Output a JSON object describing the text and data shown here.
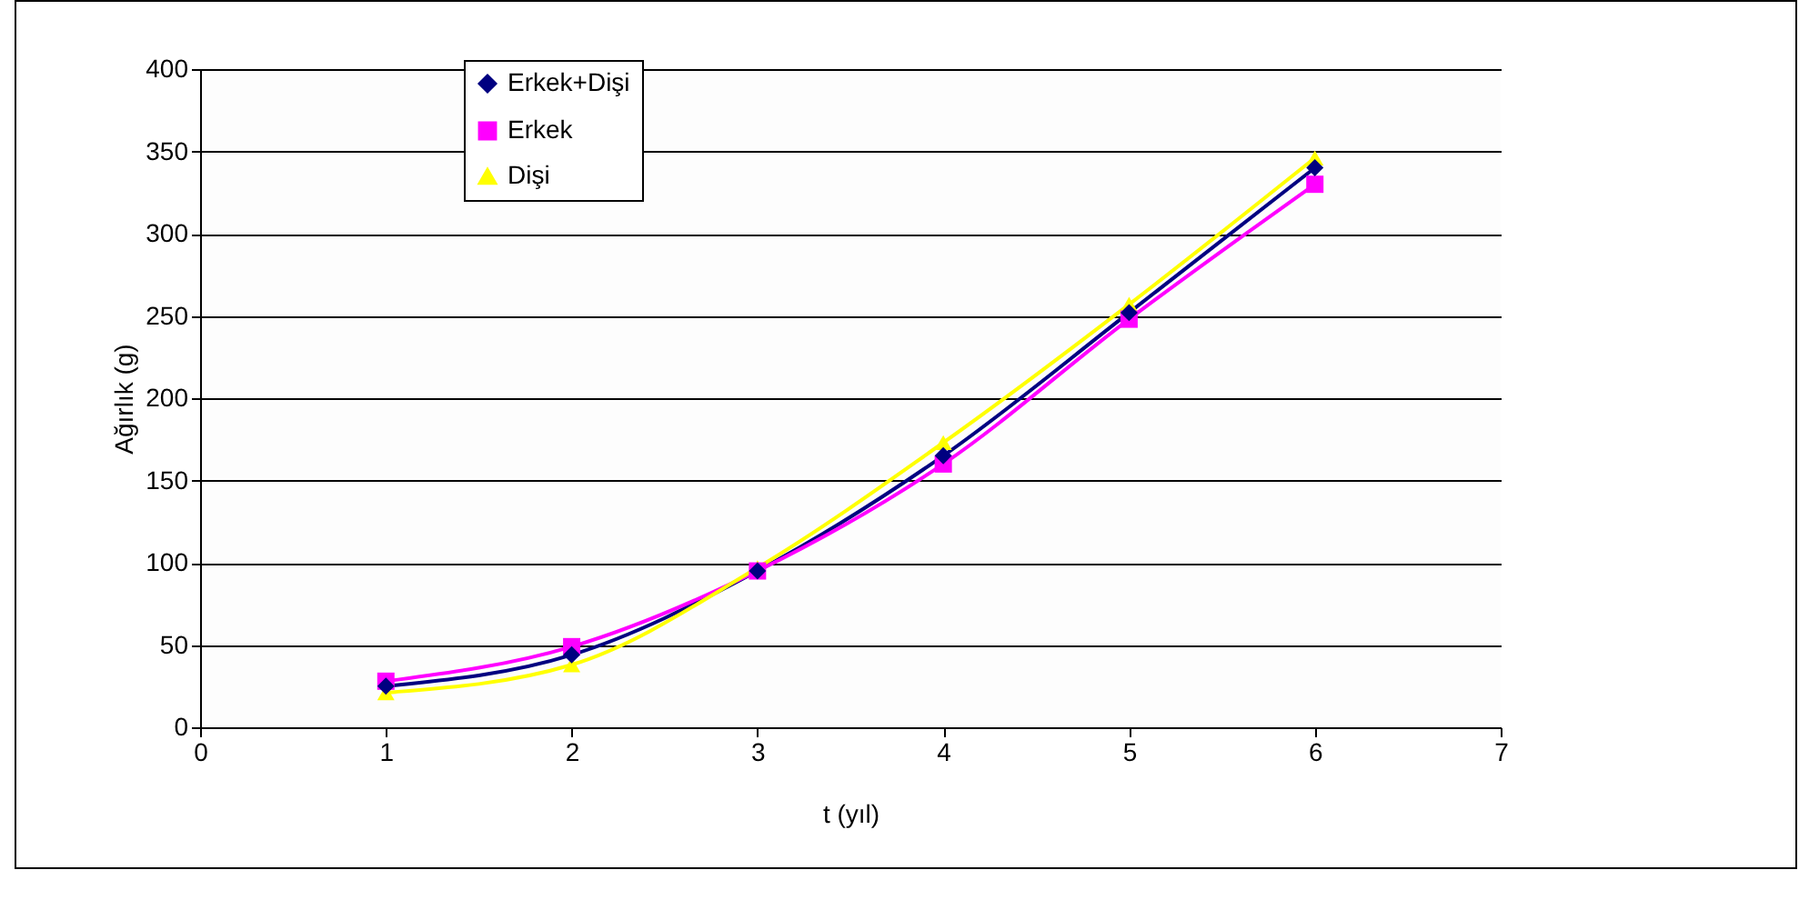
{
  "chart_data": {
    "type": "line",
    "xlabel": "t (yıl)",
    "ylabel": "Ağırlık (g)",
    "x": [
      1,
      2,
      3,
      4,
      5,
      6
    ],
    "series": [
      {
        "name": "Erkek+Dişi",
        "color": "#000080",
        "marker": "diamond",
        "values": [
          25,
          44,
          95,
          165,
          252,
          340
        ]
      },
      {
        "name": "Erkek",
        "color": "#ff00ff",
        "marker": "square",
        "values": [
          28,
          49,
          95,
          160,
          248,
          330
        ]
      },
      {
        "name": "Dişi",
        "color": "#ffff00",
        "marker": "triangle",
        "values": [
          21,
          38,
          97,
          173,
          257,
          346
        ]
      }
    ],
    "xlim": [
      0,
      7
    ],
    "xticks": [
      0,
      1,
      2,
      3,
      4,
      5,
      6,
      7
    ],
    "ylim": [
      0,
      400
    ],
    "yticks": [
      0,
      50,
      100,
      150,
      200,
      250,
      300,
      350,
      400
    ],
    "grid": "y",
    "legend": "top left",
    "line_style": "solid"
  }
}
